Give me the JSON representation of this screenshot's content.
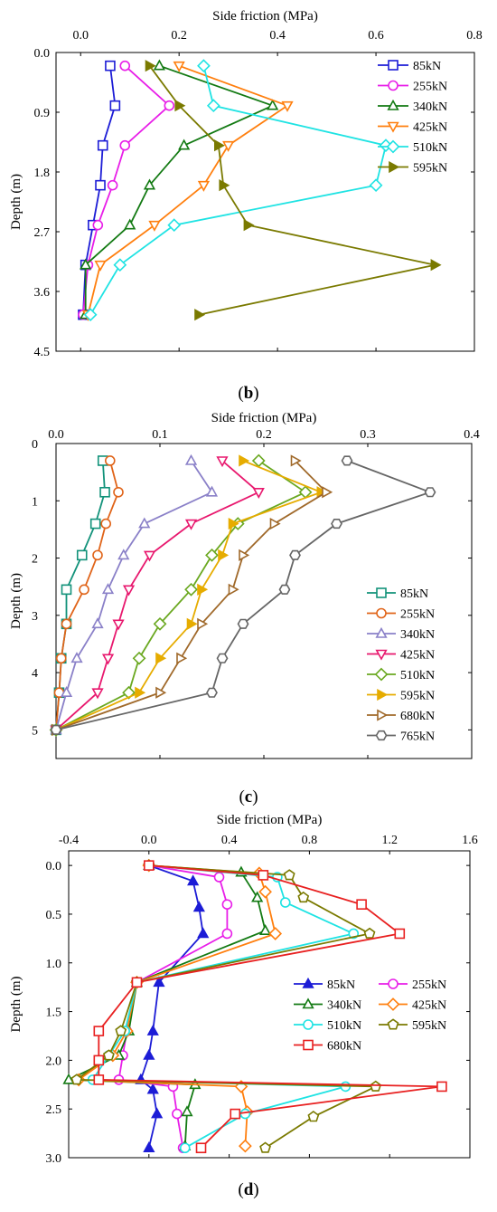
{
  "chart_data": [
    {
      "type": "line",
      "panel_label": "b",
      "xlabel": "Side friction (MPa)",
      "ylabel": "Depth (m)",
      "xlim": [
        -0.05,
        0.8
      ],
      "ylim": [
        0.0,
        4.5
      ],
      "x_ticks": [
        "0.0",
        "0.2",
        "0.4",
        "0.6",
        "0.8"
      ],
      "x_tick_values": [
        0.0,
        0.2,
        0.4,
        0.6,
        0.8
      ],
      "y_ticks": [
        "0.0",
        "0.9",
        "1.8",
        "2.7",
        "3.6",
        "4.5"
      ],
      "y_tick_values": [
        0.0,
        0.9,
        1.8,
        2.7,
        3.6,
        4.5
      ],
      "legend": "top-right",
      "grid": false,
      "series": [
        {
          "name": "85kN",
          "color": "#1c1cd6",
          "marker": "square",
          "x": [
            0.06,
            0.07,
            0.045,
            0.04,
            0.025,
            0.01,
            0.005
          ],
          "y": [
            0.2,
            0.8,
            1.4,
            2.0,
            2.6,
            3.2,
            3.95
          ]
        },
        {
          "name": "255kN",
          "color": "#e81ee8",
          "marker": "circle",
          "x": [
            0.09,
            0.18,
            0.09,
            0.065,
            0.035,
            0.015,
            0.005
          ],
          "y": [
            0.2,
            0.8,
            1.4,
            2.0,
            2.6,
            3.2,
            3.95
          ]
        },
        {
          "name": "340kN",
          "color": "#137a13",
          "marker": "triangle-up",
          "x": [
            0.16,
            0.39,
            0.21,
            0.14,
            0.1,
            0.01,
            0.01
          ],
          "y": [
            0.2,
            0.8,
            1.4,
            2.0,
            2.6,
            3.2,
            3.95
          ]
        },
        {
          "name": "425kN",
          "color": "#ff7f0e",
          "marker": "triangle-down",
          "x": [
            0.2,
            0.42,
            0.3,
            0.25,
            0.15,
            0.04,
            0.015
          ],
          "y": [
            0.2,
            0.8,
            1.4,
            2.0,
            2.6,
            3.2,
            3.95
          ]
        },
        {
          "name": "510kN",
          "color": "#1fe3e3",
          "marker": "diamond",
          "x": [
            0.25,
            0.27,
            0.62,
            0.6,
            0.19,
            0.08,
            0.02
          ],
          "y": [
            0.2,
            0.8,
            1.4,
            2.0,
            2.6,
            3.2,
            3.95
          ]
        },
        {
          "name": "595kN",
          "color": "#7a7a00",
          "marker": "triangle-right",
          "x": [
            0.14,
            0.2,
            0.28,
            0.29,
            0.34,
            0.72,
            0.24
          ],
          "y": [
            0.2,
            0.8,
            1.4,
            2.0,
            2.6,
            3.2,
            3.95
          ]
        }
      ]
    },
    {
      "type": "line",
      "panel_label": "c",
      "xlabel": "Side friction (MPa)",
      "ylabel": "Depth (m)",
      "xlim": [
        0.0,
        0.4
      ],
      "ylim": [
        0,
        5.5
      ],
      "x_ticks": [
        "0.0",
        "0.1",
        "0.2",
        "0.3",
        "0.4"
      ],
      "x_tick_values": [
        0.0,
        0.1,
        0.2,
        0.3,
        0.4
      ],
      "y_ticks": [
        "0",
        "1",
        "2",
        "3",
        "4",
        "5"
      ],
      "y_tick_values": [
        0,
        1,
        2,
        3,
        4,
        5
      ],
      "legend": "bottom-right",
      "grid": false,
      "series": [
        {
          "name": "85kN",
          "color": "#12927a",
          "marker": "square",
          "x": [
            0.045,
            0.047,
            0.038,
            0.025,
            0.01,
            0.01,
            0.005,
            0.003,
            0.0
          ],
          "y": [
            0.3,
            0.85,
            1.4,
            1.95,
            2.55,
            3.15,
            3.75,
            4.35,
            5.0
          ]
        },
        {
          "name": "255kN",
          "color": "#e06419",
          "marker": "circle",
          "x": [
            0.052,
            0.06,
            0.048,
            0.04,
            0.027,
            0.01,
            0.005,
            0.003,
            0.0
          ],
          "y": [
            0.3,
            0.85,
            1.4,
            1.95,
            2.55,
            3.15,
            3.75,
            4.35,
            5.0
          ]
        },
        {
          "name": "340kN",
          "color": "#8a80c8",
          "marker": "triangle-up",
          "x": [
            0.13,
            0.15,
            0.085,
            0.065,
            0.05,
            0.04,
            0.02,
            0.01,
            0.0
          ],
          "y": [
            0.3,
            0.85,
            1.4,
            1.95,
            2.55,
            3.15,
            3.75,
            4.35,
            5.0
          ]
        },
        {
          "name": "425kN",
          "color": "#e8186e",
          "marker": "triangle-down",
          "x": [
            0.16,
            0.195,
            0.13,
            0.09,
            0.07,
            0.06,
            0.05,
            0.04,
            0.0
          ],
          "y": [
            0.3,
            0.85,
            1.4,
            1.95,
            2.55,
            3.15,
            3.75,
            4.35,
            5.0
          ]
        },
        {
          "name": "510kN",
          "color": "#6aa820",
          "marker": "diamond",
          "x": [
            0.195,
            0.24,
            0.175,
            0.15,
            0.13,
            0.1,
            0.08,
            0.07,
            0.0
          ],
          "y": [
            0.3,
            0.85,
            1.4,
            1.95,
            2.55,
            3.15,
            3.75,
            4.35,
            5.0
          ]
        },
        {
          "name": "595kN",
          "color": "#e6ac00",
          "marker": "triangle-right",
          "x": [
            0.18,
            0.255,
            0.17,
            0.16,
            0.14,
            0.13,
            0.1,
            0.08,
            0.0
          ],
          "y": [
            0.3,
            0.85,
            1.4,
            1.95,
            2.55,
            3.15,
            3.75,
            4.35,
            5.0
          ]
        },
        {
          "name": "680kN",
          "color": "#a0692a",
          "marker": "triangle-right-open",
          "x": [
            0.23,
            0.26,
            0.21,
            0.18,
            0.17,
            0.14,
            0.12,
            0.1,
            0.0
          ],
          "y": [
            0.3,
            0.85,
            1.4,
            1.95,
            2.55,
            3.15,
            3.75,
            4.35,
            5.0
          ]
        },
        {
          "name": "765kN",
          "color": "#666666",
          "marker": "hexagon",
          "x": [
            0.28,
            0.36,
            0.27,
            0.23,
            0.22,
            0.18,
            0.16,
            0.15,
            0.0
          ],
          "y": [
            0.3,
            0.85,
            1.4,
            1.95,
            2.55,
            3.15,
            3.75,
            4.35,
            5.0
          ]
        }
      ]
    },
    {
      "type": "line",
      "panel_label": "d",
      "xlabel": "Side friction (MPa)",
      "ylabel": "Depth (m)",
      "xlim": [
        -0.4,
        1.6
      ],
      "ylim": [
        -0.15,
        3.0
      ],
      "x_ticks": [
        "-0.4",
        "0.0",
        "0.4",
        "0.8",
        "1.2",
        "1.6"
      ],
      "x_tick_values": [
        -0.4,
        0.0,
        0.4,
        0.8,
        1.2,
        1.6
      ],
      "y_ticks": [
        "0.0",
        "0.5",
        "1.0",
        "1.5",
        "2.0",
        "2.5",
        "3.0"
      ],
      "y_tick_values": [
        0.0,
        0.5,
        1.0,
        1.5,
        2.0,
        2.5,
        3.0
      ],
      "legend": "middle-right",
      "grid": false,
      "series": [
        {
          "name": "85kN",
          "color": "#1c1cd6",
          "marker": "triangle-up-filled",
          "x": [
            0.0,
            0.22,
            0.25,
            0.27,
            0.05,
            0.02,
            0.0,
            -0.04,
            0.02,
            0.04,
            0.0
          ],
          "y": [
            0.0,
            0.16,
            0.43,
            0.7,
            1.2,
            1.7,
            1.95,
            2.2,
            2.3,
            2.55,
            2.9
          ]
        },
        {
          "name": "255kN",
          "color": "#e81ee8",
          "marker": "circle",
          "x": [
            0.0,
            0.35,
            0.39,
            0.39,
            -0.06,
            -0.11,
            -0.13,
            -0.15,
            0.12,
            0.14,
            0.17
          ],
          "y": [
            0.0,
            0.12,
            0.4,
            0.7,
            1.2,
            1.7,
            1.95,
            2.2,
            2.27,
            2.55,
            2.9
          ]
        },
        {
          "name": "340kN",
          "color": "#137a13",
          "marker": "triangle-up",
          "x": [
            0.0,
            0.46,
            0.54,
            0.58,
            -0.06,
            -0.1,
            -0.15,
            -0.4,
            0.23,
            0.19,
            0.18
          ],
          "y": [
            0.0,
            0.07,
            0.33,
            0.67,
            1.2,
            1.7,
            1.95,
            2.2,
            2.25,
            2.53,
            2.88
          ]
        },
        {
          "name": "425kN",
          "color": "#ff7f0e",
          "marker": "diamond",
          "x": [
            0.0,
            0.55,
            0.58,
            0.63,
            -0.06,
            -0.11,
            -0.18,
            -0.35,
            0.46,
            0.49,
            0.48
          ],
          "y": [
            0.0,
            0.08,
            0.27,
            0.7,
            1.2,
            1.7,
            1.95,
            2.2,
            2.27,
            2.53,
            2.88
          ]
        },
        {
          "name": "510kN",
          "color": "#1fe3e3",
          "marker": "circle",
          "x": [
            0.0,
            0.64,
            0.68,
            1.02,
            -0.06,
            -0.12,
            -0.2,
            -0.28,
            0.98,
            0.48,
            0.18
          ],
          "y": [
            0.0,
            0.12,
            0.38,
            0.7,
            1.2,
            1.7,
            1.95,
            2.2,
            2.27,
            2.55,
            2.9
          ]
        },
        {
          "name": "595kN",
          "color": "#7a7a00",
          "marker": "pentagon",
          "x": [
            0.0,
            0.7,
            0.77,
            1.1,
            -0.06,
            -0.14,
            -0.2,
            -0.36,
            1.13,
            0.82,
            0.58
          ],
          "y": [
            0.0,
            0.1,
            0.33,
            0.7,
            1.2,
            1.7,
            1.95,
            2.2,
            2.27,
            2.58,
            2.9
          ]
        },
        {
          "name": "680kN",
          "color": "#e82020",
          "marker": "square",
          "x": [
            0.0,
            0.57,
            1.06,
            1.25,
            -0.06,
            -0.25,
            -0.25,
            -0.25,
            1.46,
            0.43,
            0.26
          ],
          "y": [
            0.0,
            0.1,
            0.4,
            0.7,
            1.2,
            1.7,
            2.0,
            2.2,
            2.27,
            2.55,
            2.9
          ]
        }
      ]
    }
  ]
}
